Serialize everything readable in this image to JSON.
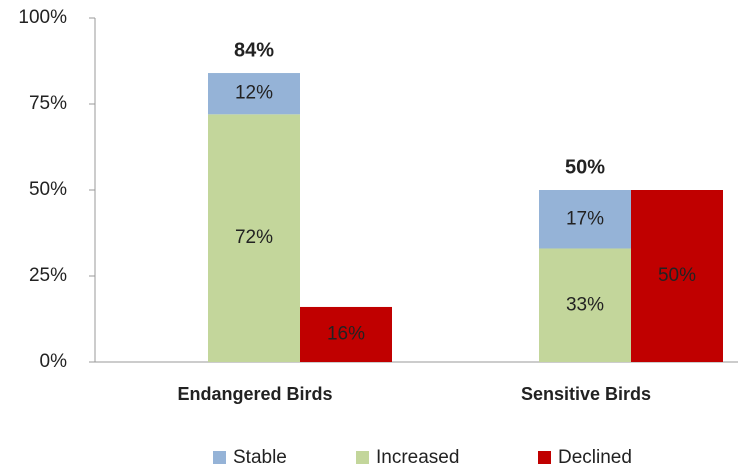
{
  "chart_data": {
    "type": "bar",
    "categories": [
      "Endangered Birds",
      "Sensitive Birds"
    ],
    "series": [
      {
        "name": "Stable",
        "color": "#95b3d7",
        "values": [
          12,
          17
        ],
        "value_labels": [
          "12%",
          "17%"
        ],
        "stack": "left"
      },
      {
        "name": "Increased",
        "color": "#c3d69b",
        "values": [
          72,
          33
        ],
        "value_labels": [
          "72%",
          "33%"
        ],
        "stack": "left"
      },
      {
        "name": "Declined",
        "color": "#c00000",
        "values": [
          16,
          50
        ],
        "value_labels": [
          "16%",
          "50%"
        ],
        "stack": "right"
      }
    ],
    "totals": [
      84,
      50
    ],
    "total_labels": [
      "84%",
      "50%"
    ],
    "ylim": [
      0,
      100
    ],
    "yticks": [
      {
        "value": 0,
        "label": "0%"
      },
      {
        "value": 25,
        "label": "25%"
      },
      {
        "value": 50,
        "label": "50%"
      },
      {
        "value": 75,
        "label": "75%"
      },
      {
        "value": 100,
        "label": "100%"
      }
    ],
    "grid": false,
    "legend": "bottom"
  }
}
